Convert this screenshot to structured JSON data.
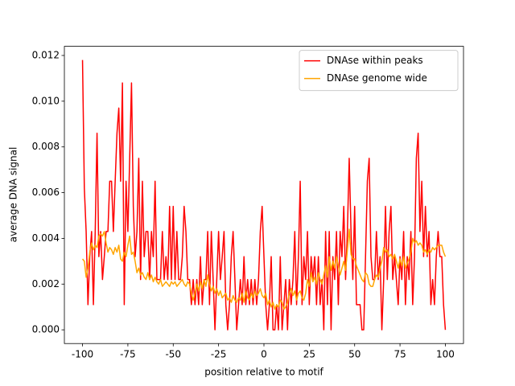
{
  "chart_data": {
    "type": "line",
    "x_label": "position relative to motif",
    "y_label": "average DNA signal",
    "x": [
      -100,
      -99,
      -98,
      -97,
      -96,
      -95,
      -94,
      -93,
      -92,
      -91,
      -90,
      -89,
      -88,
      -87,
      -86,
      -85,
      -84,
      -83,
      -82,
      -81,
      -80,
      -79,
      -78,
      -77,
      -76,
      -75,
      -74,
      -73,
      -72,
      -71,
      -70,
      -69,
      -68,
      -67,
      -66,
      -65,
      -64,
      -63,
      -62,
      -61,
      -60,
      -59,
      -58,
      -57,
      -56,
      -55,
      -54,
      -53,
      -52,
      -51,
      -50,
      -49,
      -48,
      -47,
      -46,
      -45,
      -44,
      -43,
      -42,
      -41,
      -40,
      -39,
      -38,
      -37,
      -36,
      -35,
      -34,
      -33,
      -32,
      -31,
      -30,
      -29,
      -28,
      -27,
      -26,
      -25,
      -24,
      -23,
      -22,
      -21,
      -20,
      -19,
      -18,
      -17,
      -16,
      -15,
      -14,
      -13,
      -12,
      -11,
      -10,
      -9,
      -8,
      -7,
      -6,
      -5,
      -4,
      -3,
      -2,
      -1,
      0,
      1,
      2,
      3,
      4,
      5,
      6,
      7,
      8,
      9,
      10,
      11,
      12,
      13,
      14,
      15,
      16,
      17,
      18,
      19,
      20,
      21,
      22,
      23,
      24,
      25,
      26,
      27,
      28,
      29,
      30,
      31,
      32,
      33,
      34,
      35,
      36,
      37,
      38,
      39,
      40,
      41,
      42,
      43,
      44,
      45,
      46,
      47,
      48,
      49,
      50,
      51,
      52,
      53,
      54,
      55,
      56,
      57,
      58,
      59,
      60,
      61,
      62,
      63,
      64,
      65,
      66,
      67,
      68,
      69,
      70,
      71,
      72,
      73,
      74,
      75,
      76,
      77,
      78,
      79,
      80,
      81,
      82,
      83,
      84,
      85,
      86,
      87,
      88,
      89,
      90,
      91,
      92,
      93,
      94,
      95,
      96,
      97,
      98,
      99,
      100
    ],
    "series": [
      {
        "name": "DNAse within peaks",
        "color": "#ff0000",
        "values": [
          0.0118,
          0.0062,
          0.0043,
          0.0011,
          0.0032,
          0.0043,
          0.0011,
          0.0043,
          0.0086,
          0.0032,
          0.0043,
          0.0022,
          0.0032,
          0.0043,
          0.0043,
          0.0065,
          0.0065,
          0.0043,
          0.0065,
          0.0086,
          0.0097,
          0.0065,
          0.0108,
          0.0011,
          0.0065,
          0.0043,
          0.0075,
          0.0108,
          0.0054,
          0.0032,
          0.0043,
          0.0075,
          0.0022,
          0.0065,
          0.0032,
          0.0043,
          0.0043,
          0.0022,
          0.0043,
          0.0032,
          0.0065,
          0.0022,
          0.0022,
          0.0022,
          0.0043,
          0.0022,
          0.0032,
          0.0022,
          0.0054,
          0.0022,
          0.0054,
          0.0022,
          0.0043,
          0.0022,
          0.0022,
          0.0032,
          0.0054,
          0.0043,
          0.0022,
          0.0022,
          0.0011,
          0.0022,
          0.0011,
          0.0022,
          0.0011,
          0.0032,
          0.0011,
          0.0022,
          0.0022,
          0.0043,
          0.0011,
          0.0043,
          0.0022,
          0.0,
          0.0022,
          0.0043,
          0.0022,
          0.0032,
          0.0043,
          0.0011,
          0.0,
          0.0011,
          0.0032,
          0.0043,
          0.0022,
          0.0,
          0.0011,
          0.0022,
          0.0011,
          0.0032,
          0.0011,
          0.0022,
          0.0011,
          0.0022,
          0.0011,
          0.0022,
          0.0011,
          0.0022,
          0.0043,
          0.0054,
          0.0032,
          0.0011,
          0.0,
          0.0011,
          0.0032,
          0.0,
          0.0,
          0.0011,
          0.0,
          0.0032,
          0.0,
          0.0011,
          0.0022,
          0.0,
          0.0022,
          0.0011,
          0.0022,
          0.0043,
          0.0011,
          0.0032,
          0.0065,
          0.0011,
          0.0032,
          0.0022,
          0.0043,
          0.0011,
          0.0032,
          0.0022,
          0.0032,
          0.0011,
          0.0032,
          0.0011,
          0.0022,
          0.0,
          0.0043,
          0.0011,
          0.0043,
          0.0,
          0.0032,
          0.0022,
          0.0043,
          0.0011,
          0.0043,
          0.0032,
          0.0054,
          0.0022,
          0.0043,
          0.0075,
          0.0043,
          0.0022,
          0.0054,
          0.0011,
          0.0011,
          0.0011,
          0.0,
          0.0,
          0.0032,
          0.0065,
          0.0075,
          0.0032,
          0.0022,
          0.0022,
          0.0043,
          0.0022,
          0.0032,
          0.0,
          0.0022,
          0.0054,
          0.0022,
          0.0043,
          0.0054,
          0.0022,
          0.0032,
          0.0022,
          0.0011,
          0.0032,
          0.0022,
          0.0043,
          0.0011,
          0.0032,
          0.0022,
          0.0043,
          0.0011,
          0.0032,
          0.0075,
          0.0086,
          0.0043,
          0.0065,
          0.0032,
          0.0054,
          0.0032,
          0.0043,
          0.0011,
          0.0022,
          0.0011,
          0.0032,
          0.0043,
          0.0032,
          0.0032,
          0.0011,
          0.0
        ]
      },
      {
        "name": "DNAse genome wide",
        "color": "#ffa500",
        "values": [
          0.0031,
          0.003,
          0.0023,
          0.0027,
          0.0034,
          0.0038,
          0.0035,
          0.0037,
          0.0036,
          0.0041,
          0.0042,
          0.0041,
          0.0043,
          0.0038,
          0.0034,
          0.0036,
          0.0035,
          0.0033,
          0.0036,
          0.0034,
          0.0037,
          0.0031,
          0.003,
          0.0034,
          0.0032,
          0.0037,
          0.0041,
          0.0033,
          0.0034,
          0.003,
          0.0025,
          0.0027,
          0.0024,
          0.0025,
          0.0023,
          0.0022,
          0.0025,
          0.0022,
          0.0024,
          0.0021,
          0.0023,
          0.0021,
          0.002,
          0.0022,
          0.0019,
          0.002,
          0.0021,
          0.002,
          0.0019,
          0.0021,
          0.002,
          0.0021,
          0.0019,
          0.002,
          0.0021,
          0.0022,
          0.002,
          0.0019,
          0.0021,
          0.002,
          0.0016,
          0.0013,
          0.0016,
          0.002,
          0.0017,
          0.0021,
          0.0018,
          0.0022,
          0.0019,
          0.0024,
          0.002,
          0.0017,
          0.0019,
          0.0016,
          0.0018,
          0.0015,
          0.0017,
          0.0014,
          0.0015,
          0.0016,
          0.0013,
          0.0014,
          0.0012,
          0.0015,
          0.0013,
          0.0012,
          0.0014,
          0.0013,
          0.0016,
          0.0012,
          0.0017,
          0.0014,
          0.0013,
          0.0016,
          0.0014,
          0.0017,
          0.0015,
          0.0016,
          0.0018,
          0.0015,
          0.0014,
          0.0016,
          0.0011,
          0.0013,
          0.001,
          0.0012,
          0.0009,
          0.0011,
          0.001,
          0.0013,
          0.0012,
          0.0009,
          0.001,
          0.0012,
          0.0016,
          0.0018,
          0.0015,
          0.0017,
          0.0013,
          0.0016,
          0.0017,
          0.0014,
          0.0013,
          0.0016,
          0.0022,
          0.0019,
          0.0025,
          0.0021,
          0.0023,
          0.002,
          0.0025,
          0.0022,
          0.002,
          0.0024,
          0.0028,
          0.0023,
          0.0032,
          0.0026,
          0.003,
          0.0027,
          0.0032,
          0.0028,
          0.0024,
          0.0027,
          0.003,
          0.0026,
          0.0035,
          0.0044,
          0.0033,
          0.0031,
          0.0031,
          0.0028,
          0.0026,
          0.0024,
          0.0022,
          0.0021,
          0.0025,
          0.0024,
          0.002,
          0.0019,
          0.0019,
          0.0022,
          0.0024,
          0.0023,
          0.0027,
          0.003,
          0.0036,
          0.0034,
          0.0035,
          0.0032,
          0.0033,
          0.0031,
          0.0033,
          0.003,
          0.0027,
          0.0031,
          0.0028,
          0.0032,
          0.0027,
          0.0029,
          0.0031,
          0.0034,
          0.004,
          0.0038,
          0.0039,
          0.0037,
          0.0038,
          0.0037,
          0.0034,
          0.0035,
          0.0033,
          0.0035,
          0.0034,
          0.0036,
          0.0035,
          0.0036,
          0.0037,
          0.0037,
          0.0037,
          0.0034,
          0.0032
        ]
      }
    ],
    "xlim": [
      -110,
      110
    ],
    "xticks": [
      -100,
      -75,
      -50,
      -25,
      0,
      25,
      50,
      75,
      100
    ],
    "ylim": [
      -0.0006,
      0.0124
    ],
    "yticks": [
      {
        "value": 0,
        "label": "0.000"
      },
      {
        "value": 0.002,
        "label": "0.002"
      },
      {
        "value": 0.004,
        "label": "0.004"
      },
      {
        "value": 0.006,
        "label": "0.006"
      },
      {
        "value": 0.008,
        "label": "0.008"
      },
      {
        "value": 0.01,
        "label": "0.010"
      },
      {
        "value": 0.012,
        "label": "0.012"
      }
    ],
    "legend": "upper right"
  }
}
